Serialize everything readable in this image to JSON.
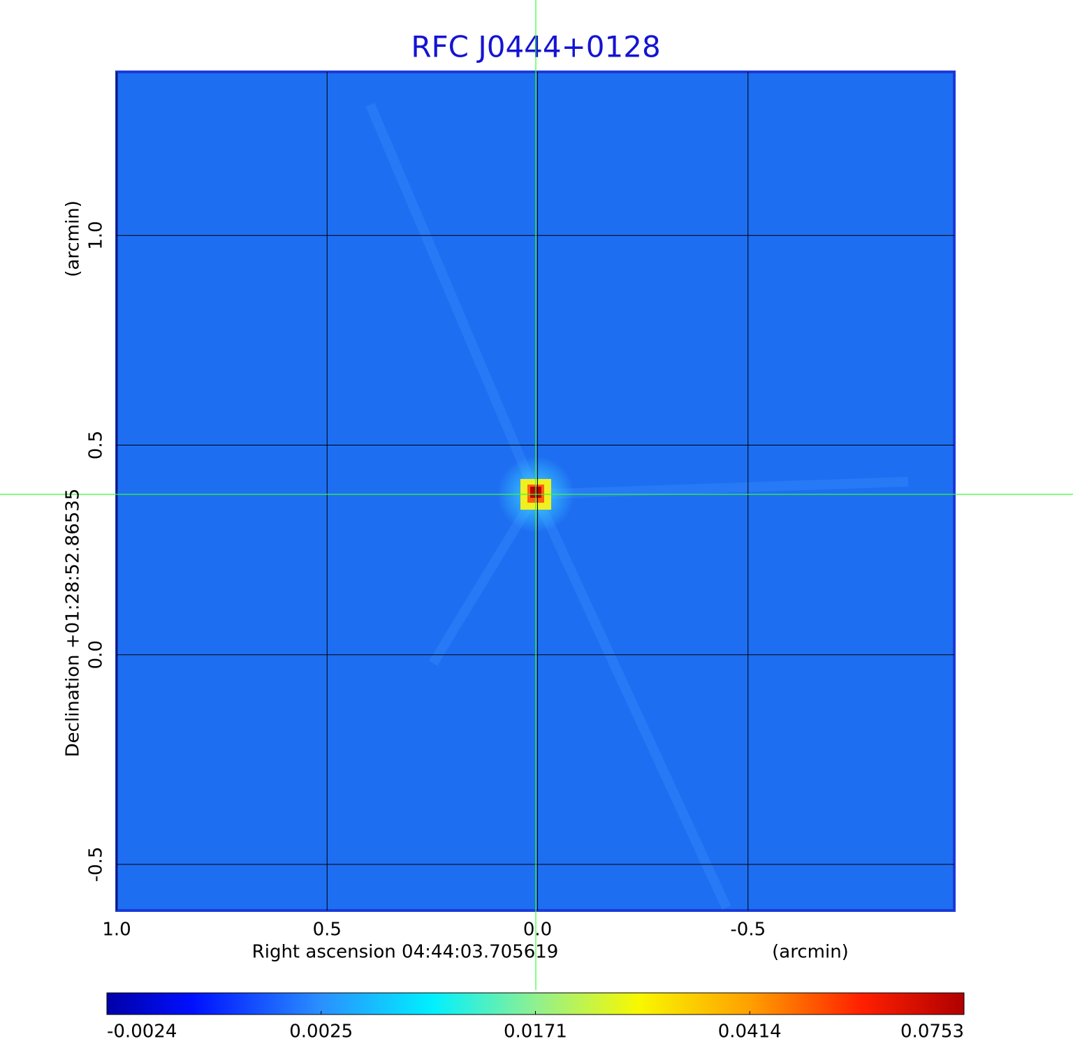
{
  "chart_data": {
    "type": "image",
    "title": "RFC J0444+0128",
    "x_label": "Right ascension  04:44:03.705619",
    "x_unit": "(arcmin)",
    "y_label": "Declination  +01:28:52.86535",
    "y_unit": "(arcmin)",
    "xlim": [
      1.0,
      -0.99
    ],
    "ylim": [
      -0.61,
      1.39
    ],
    "xticks": [
      {
        "value": 1,
        "label": "1.0"
      },
      0.5,
      {
        "value": 0,
        "label": "0.0"
      },
      -0.5
    ],
    "yticks": [
      -0.5,
      {
        "value": 0,
        "label": "0.0"
      },
      0.5,
      {
        "value": 1,
        "label": "1.0"
      }
    ],
    "grid": true,
    "colorbar_ticks": [
      -0.0024,
      0.0025,
      0.0171,
      0.0414,
      0.0753
    ]
  }
}
